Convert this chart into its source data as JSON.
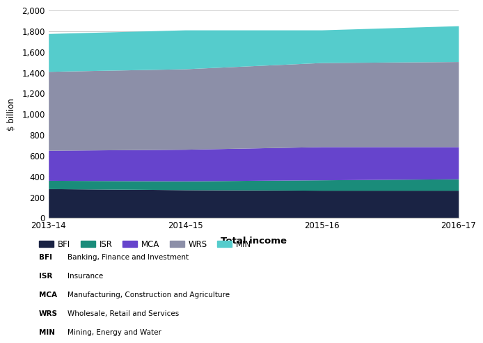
{
  "years": [
    "2013–14",
    "2014–15",
    "2015–16",
    "2016–17"
  ],
  "segments": {
    "BFI": [
      280,
      270,
      265,
      265
    ],
    "ISR": [
      80,
      85,
      100,
      110
    ],
    "MCA": [
      290,
      305,
      320,
      310
    ],
    "WRS": [
      760,
      775,
      810,
      820
    ],
    "MIN": [
      365,
      375,
      315,
      345
    ]
  },
  "colors": {
    "BFI": "#1a2344",
    "ISR": "#1a8c7a",
    "MCA": "#6644cc",
    "WRS": "#8c8fa8",
    "MIN": "#55cccc"
  },
  "legend_labels": [
    "BFI",
    "ISR",
    "MCA",
    "WRS",
    "MIN"
  ],
  "descriptions": [
    [
      "BFI",
      "Banking, Finance and Investment"
    ],
    [
      "ISR",
      "Insurance"
    ],
    [
      "MCA",
      "Manufacturing, Construction and Agriculture"
    ],
    [
      "WRS",
      "Wholesale, Retail and Services"
    ],
    [
      "MIN",
      "Mining, Energy and Water"
    ]
  ],
  "xlabel": "Total income",
  "ylabel": "$ billion",
  "ylim": [
    0,
    2000
  ],
  "yticks": [
    0,
    200,
    400,
    600,
    800,
    1000,
    1200,
    1400,
    1600,
    1800,
    2000
  ],
  "background_color": "#ffffff",
  "grid_color": "#cccccc"
}
